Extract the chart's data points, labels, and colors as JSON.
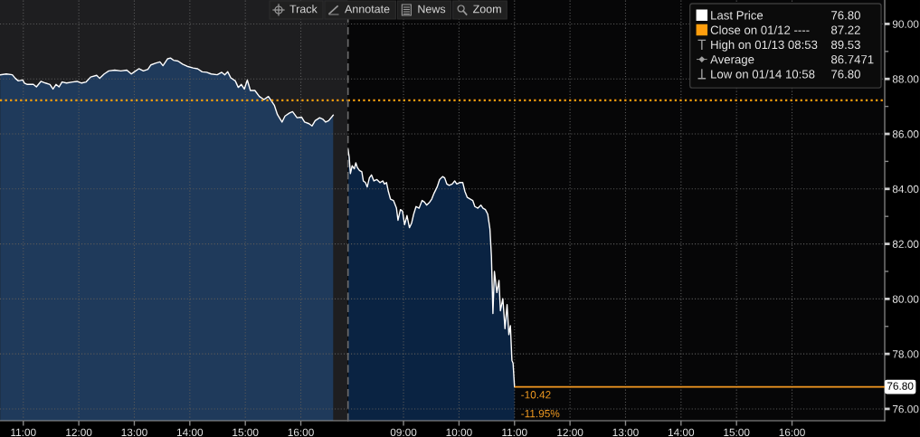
{
  "chart_data": [
    {
      "type": "area",
      "series": [
        {
          "color": "#ffffff",
          "x": [
            10.584,
            10.693,
            10.802,
            10.856,
            10.91,
            10.992,
            11.019,
            11.073,
            11.182,
            11.236,
            11.317,
            11.399,
            11.48,
            11.535,
            11.589,
            11.643,
            11.698,
            11.779,
            11.887,
            11.969,
            12.05,
            12.132,
            12.213,
            12.322,
            12.376,
            12.457,
            12.539,
            12.647,
            12.756,
            12.865,
            12.946,
            13.0,
            13.082,
            13.163,
            13.245,
            13.299,
            13.38,
            13.462,
            13.516,
            13.598,
            13.652,
            13.706,
            13.788,
            13.869,
            13.95,
            14.059,
            14.14,
            14.222,
            14.303,
            14.385,
            14.493,
            14.575,
            14.629,
            14.683,
            14.738,
            14.819,
            14.873,
            14.928,
            14.982,
            15.036,
            15.091,
            15.172,
            15.253,
            15.335,
            15.416,
            15.471,
            15.525,
            15.579,
            15.661,
            15.715,
            15.796,
            15.851,
            15.932,
            16.013,
            16.068,
            16.149,
            16.203,
            16.258,
            16.339,
            16.393,
            16.448,
            16.502,
            16.583
          ],
          "values": [
            88.15,
            88.18,
            88.15,
            88.02,
            87.93,
            87.96,
            87.85,
            87.8,
            87.8,
            87.71,
            87.91,
            87.85,
            87.8,
            87.63,
            87.8,
            87.71,
            87.89,
            87.85,
            87.89,
            87.91,
            87.85,
            87.89,
            88.07,
            88.13,
            88.02,
            88.18,
            88.29,
            88.32,
            88.29,
            88.32,
            88.18,
            88.26,
            88.37,
            88.29,
            88.35,
            88.51,
            88.57,
            88.62,
            88.48,
            88.73,
            88.76,
            88.68,
            88.65,
            88.54,
            88.46,
            88.4,
            88.37,
            88.26,
            88.24,
            88.18,
            88.15,
            88.24,
            88.15,
            88.26,
            88.04,
            87.93,
            87.69,
            87.8,
            87.63,
            87.96,
            87.58,
            87.58,
            87.36,
            87.25,
            87.36,
            87.2,
            87.03,
            86.7,
            86.43,
            86.65,
            86.76,
            86.81,
            86.59,
            86.61,
            86.43,
            86.37,
            86.29,
            86.48,
            86.59,
            86.54,
            86.43,
            86.48,
            86.68
          ]
        }
      ],
      "xlim": [
        10.58,
        16.85
      ],
      "xticks": [
        {
          "value": 11,
          "label": "11:00"
        },
        {
          "value": 12,
          "label": "12:00"
        },
        {
          "value": 13,
          "label": "13:00"
        },
        {
          "value": 14,
          "label": "14:00"
        },
        {
          "value": 15,
          "label": "15:00"
        },
        {
          "value": 16,
          "label": "16:00"
        }
      ],
      "ylim": [
        75.57,
        90.87
      ],
      "yticks": [
        76,
        78,
        80,
        82,
        84,
        86,
        88,
        90
      ],
      "tick_labels": "x",
      "bands": [
        {
          "axis": "x",
          "from": 10.58,
          "to": 16.85,
          "color": "#1e1e20"
        }
      ],
      "ref_lines": [
        {
          "axis": "y",
          "value": 87.22,
          "color": "#ff9e0d",
          "line_style": "dotted"
        }
      ],
      "grid": true
    },
    {
      "type": "area",
      "series": [
        {
          "name": "Last Price",
          "color": "#ffffff",
          "x": [
            8.0,
            8.021,
            8.043,
            8.075,
            8.114,
            8.141,
            8.168,
            8.206,
            8.249,
            8.276,
            8.314,
            8.347,
            8.385,
            8.423,
            8.466,
            8.521,
            8.575,
            8.629,
            8.656,
            8.694,
            8.727,
            8.765,
            8.819,
            8.873,
            8.901,
            8.944,
            8.982,
            9.02,
            9.063,
            9.107,
            9.145,
            9.183,
            9.226,
            9.281,
            9.335,
            9.378,
            9.416,
            9.471,
            9.508,
            9.552,
            9.606,
            9.65,
            9.704,
            9.742,
            9.78,
            9.824,
            9.878,
            9.922,
            9.959,
            10.013,
            10.068,
            10.106,
            10.149,
            10.204,
            10.247,
            10.285,
            10.34,
            10.394,
            10.432,
            10.475,
            10.518,
            10.557,
            10.584,
            10.611,
            10.638,
            10.682,
            10.72,
            10.746,
            10.79,
            10.828,
            10.866,
            10.898,
            10.926,
            10.953,
            10.974,
            11.0
          ],
          "values": [
            85.44,
            85.17,
            84.56,
            84.84,
            84.73,
            84.95,
            84.78,
            84.67,
            84.62,
            84.29,
            84.23,
            84.07,
            84.4,
            84.51,
            84.29,
            84.34,
            84.23,
            84.29,
            84.18,
            84.23,
            83.91,
            83.63,
            83.58,
            83.3,
            82.86,
            83.25,
            83.19,
            82.7,
            83.03,
            82.59,
            82.75,
            83.08,
            83.36,
            83.3,
            83.58,
            83.52,
            83.41,
            83.52,
            83.63,
            83.85,
            84.07,
            84.34,
            84.45,
            84.4,
            84.18,
            84.13,
            84.18,
            84.29,
            84.18,
            84.23,
            84.23,
            83.91,
            83.69,
            83.63,
            83.58,
            83.36,
            83.3,
            83.41,
            83.3,
            83.25,
            83.08,
            82.54,
            81.55,
            79.47,
            81.0,
            80.23,
            80.67,
            79.57,
            80.01,
            78.92,
            79.79,
            78.7,
            79.03,
            77.77,
            77.66,
            76.8
          ]
        }
      ],
      "xlim": [
        8.0,
        17.67
      ],
      "xticks": [
        {
          "value": 9,
          "label": "09:00"
        },
        {
          "value": 10,
          "label": "10:00"
        },
        {
          "value": 11,
          "label": "11:00"
        },
        {
          "value": 12,
          "label": "12:00"
        },
        {
          "value": 13,
          "label": "13:00"
        },
        {
          "value": 14,
          "label": "14:00"
        },
        {
          "value": 15,
          "label": "15:00"
        },
        {
          "value": 16,
          "label": "16:00"
        }
      ],
      "ylim": [
        75.57,
        90.87
      ],
      "yticks": [
        {
          "value": 76,
          "label": "76.00"
        },
        {
          "value": 77,
          "label": null
        },
        {
          "value": 78,
          "label": "78.00"
        },
        {
          "value": 79,
          "label": null
        },
        {
          "value": 80,
          "label": "80.00"
        },
        {
          "value": 81,
          "label": null
        },
        {
          "value": 82,
          "label": "82.00"
        },
        {
          "value": 83,
          "label": null
        },
        {
          "value": 84,
          "label": "84.00"
        },
        {
          "value": 85,
          "label": null
        },
        {
          "value": 86,
          "label": "86.00"
        },
        {
          "value": 87,
          "label": null
        },
        {
          "value": 88,
          "label": "88.00"
        },
        {
          "value": 89,
          "label": null
        },
        {
          "value": 90,
          "label": "90.00"
        }
      ],
      "ref_lines": [
        {
          "axis": "x",
          "value": 8.0,
          "color": "#6a6a6a",
          "line_style": "dashed"
        },
        {
          "axis": "y",
          "value": 87.22,
          "label": "Close on 01/12 ----",
          "color": "#ff9e0d",
          "line_style": "dotted"
        },
        {
          "axis": "y",
          "value": 76.8,
          "label": "76.80",
          "color": "#f59a23",
          "line_style": "solid"
        }
      ],
      "annotations": [
        "Track",
        "Annotate",
        "News",
        "Zoom",
        "76.80",
        "87.22",
        "High on 01/13 08:53",
        "89.53",
        "Average",
        "86.7471",
        "Low on 01/14 10:58",
        "76.80",
        {
          "text": "-10.42",
          "x": 11.0,
          "y": 76.8
        },
        {
          "text": "-11.95%",
          "x": 11.0,
          "y": 76.8
        }
      ],
      "grid": true,
      "legend": "top right"
    }
  ]
}
